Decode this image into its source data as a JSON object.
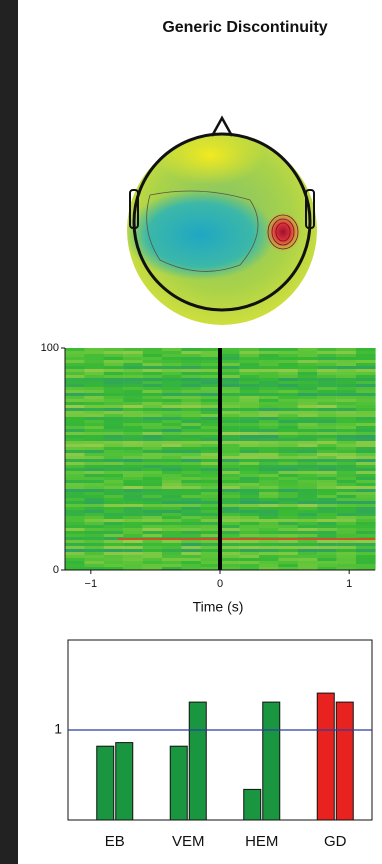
{
  "title": "Generic Discontinuity",
  "chart_data": [
    {
      "type": "topomap"
    },
    {
      "type": "image",
      "xlabel": "Time (s)",
      "xlim": [
        -1.2,
        1.2
      ],
      "xticks": [
        {
          "value": -1,
          "label": "−1"
        },
        0,
        1
      ],
      "ylim": [
        0,
        100
      ],
      "yticks": [
        0,
        100
      ],
      "marker_line": 0
    },
    {
      "type": "bar",
      "categories": [
        "EB",
        "VEM",
        "HEM",
        "GD"
      ],
      "series": [
        {
          "values": [
            0.82,
            0.82,
            0.34,
            1.41
          ],
          "colors": [
            "#1a9641",
            "#1a9641",
            "#1a9641",
            "#e8231f"
          ]
        },
        {
          "values": [
            0.86,
            1.31,
            1.31,
            1.31
          ],
          "colors": [
            "#1a9641",
            "#1a9641",
            "#1a9641",
            "#e8231f"
          ]
        }
      ],
      "ylim": [
        0,
        2
      ],
      "yticks": [
        1
      ],
      "reference_line": 1,
      "reference_color": "#2b3fa0"
    }
  ]
}
